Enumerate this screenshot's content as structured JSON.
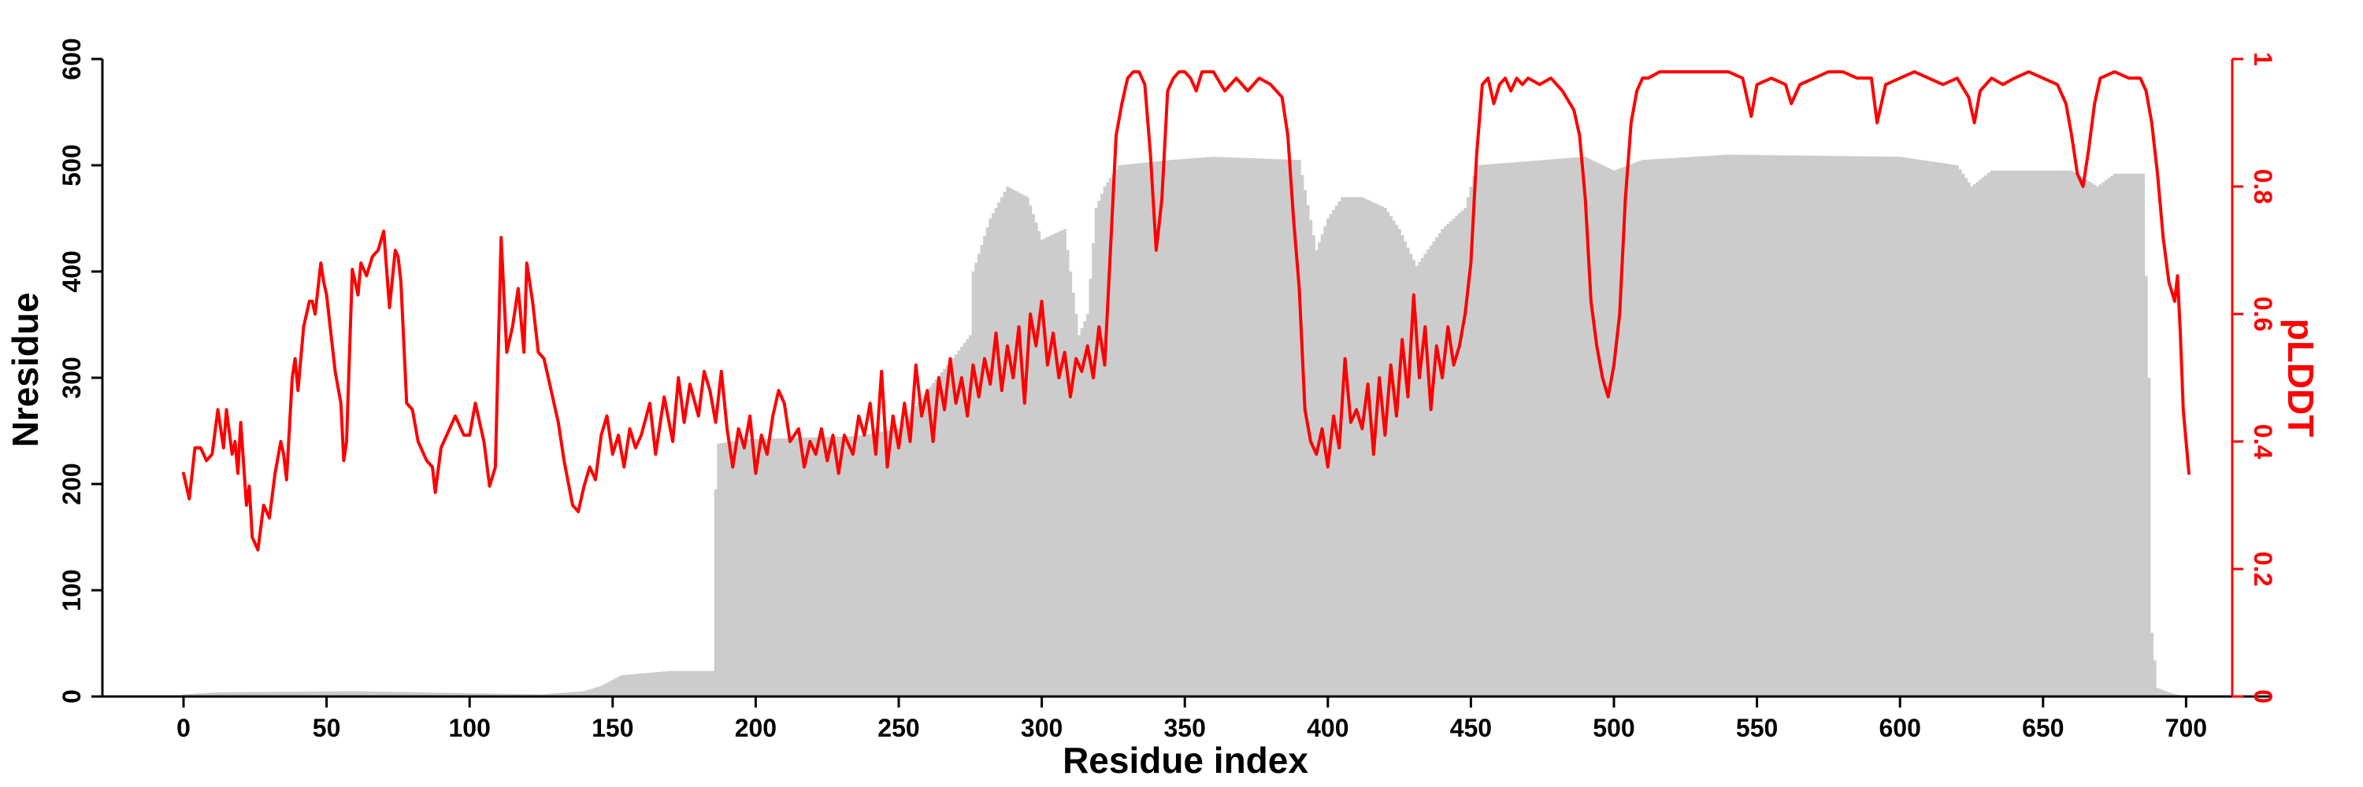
{
  "colors": {
    "bars": "#cccccc",
    "plddt": "#ff0000",
    "axis": "#000000"
  },
  "chart_data": {
    "type": "bar+line",
    "xlabel": "Residue index",
    "ylabel_left": "Nresidue",
    "ylabel_right": "pLDDT",
    "xlim": [
      -28,
      718
    ],
    "ylim_left": [
      0,
      600
    ],
    "ylim_right": [
      0,
      1
    ],
    "x_ticks": [
      0,
      50,
      100,
      150,
      200,
      250,
      300,
      350,
      400,
      450,
      500,
      550,
      600,
      650,
      700
    ],
    "y_left_ticks": [
      0,
      100,
      200,
      300,
      400,
      500,
      600
    ],
    "y_right_ticks": [
      0,
      0.2,
      0.4,
      0.6,
      0.8,
      1
    ],
    "grid": false,
    "legend": "none",
    "nresidue_profile": [
      [
        0,
        2
      ],
      [
        12,
        4
      ],
      [
        60,
        5
      ],
      [
        125,
        2
      ],
      [
        140,
        5
      ],
      [
        146,
        10
      ],
      [
        153,
        20
      ],
      [
        170,
        24
      ],
      [
        185,
        24
      ],
      [
        186,
        195
      ],
      [
        187,
        238
      ],
      [
        196,
        242
      ],
      [
        235,
        245
      ],
      [
        250,
        252
      ],
      [
        262,
        295
      ],
      [
        270,
        322
      ],
      [
        275,
        340
      ],
      [
        276,
        400
      ],
      [
        282,
        450
      ],
      [
        288,
        480
      ],
      [
        295,
        470
      ],
      [
        300,
        430
      ],
      [
        308,
        440
      ],
      [
        313,
        340
      ],
      [
        316,
        360
      ],
      [
        319,
        460
      ],
      [
        322,
        480
      ],
      [
        327,
        500
      ],
      [
        345,
        505
      ],
      [
        360,
        508
      ],
      [
        390,
        505
      ],
      [
        396,
        420
      ],
      [
        400,
        450
      ],
      [
        405,
        470
      ],
      [
        412,
        470
      ],
      [
        420,
        460
      ],
      [
        425,
        440
      ],
      [
        431,
        405
      ],
      [
        440,
        440
      ],
      [
        448,
        460
      ],
      [
        452,
        500
      ],
      [
        490,
        508
      ],
      [
        500,
        495
      ],
      [
        510,
        505
      ],
      [
        540,
        510
      ],
      [
        600,
        508
      ],
      [
        620,
        500
      ],
      [
        625,
        480
      ],
      [
        632,
        495
      ],
      [
        660,
        495
      ],
      [
        669,
        480
      ],
      [
        675,
        492
      ],
      [
        685,
        492
      ],
      [
        687,
        300
      ],
      [
        688,
        60
      ],
      [
        690,
        8
      ],
      [
        695,
        3
      ],
      [
        700,
        0
      ]
    ],
    "plddt": [
      [
        0,
        0.35
      ],
      [
        2,
        0.31
      ],
      [
        4,
        0.39
      ],
      [
        6,
        0.39
      ],
      [
        8,
        0.37
      ],
      [
        10,
        0.38
      ],
      [
        12,
        0.45
      ],
      [
        14,
        0.39
      ],
      [
        15,
        0.45
      ],
      [
        17,
        0.38
      ],
      [
        18,
        0.4
      ],
      [
        19,
        0.35
      ],
      [
        20,
        0.43
      ],
      [
        22,
        0.3
      ],
      [
        23,
        0.33
      ],
      [
        24,
        0.25
      ],
      [
        26,
        0.23
      ],
      [
        28,
        0.3
      ],
      [
        30,
        0.28
      ],
      [
        32,
        0.35
      ],
      [
        34,
        0.4
      ],
      [
        35,
        0.38
      ],
      [
        36,
        0.34
      ],
      [
        38,
        0.5
      ],
      [
        39,
        0.53
      ],
      [
        40,
        0.48
      ],
      [
        42,
        0.58
      ],
      [
        44,
        0.62
      ],
      [
        45,
        0.62
      ],
      [
        46,
        0.6
      ],
      [
        48,
        0.68
      ],
      [
        49,
        0.65
      ],
      [
        50,
        0.63
      ],
      [
        52,
        0.55
      ],
      [
        53,
        0.51
      ],
      [
        55,
        0.46
      ],
      [
        56,
        0.37
      ],
      [
        57,
        0.4
      ],
      [
        59,
        0.67
      ],
      [
        61,
        0.63
      ],
      [
        62,
        0.68
      ],
      [
        64,
        0.66
      ],
      [
        66,
        0.69
      ],
      [
        68,
        0.7
      ],
      [
        70,
        0.73
      ],
      [
        72,
        0.61
      ],
      [
        74,
        0.7
      ],
      [
        75,
        0.69
      ],
      [
        76,
        0.65
      ],
      [
        78,
        0.46
      ],
      [
        80,
        0.45
      ],
      [
        82,
        0.4
      ],
      [
        85,
        0.37
      ],
      [
        87,
        0.36
      ],
      [
        88,
        0.32
      ],
      [
        90,
        0.39
      ],
      [
        93,
        0.42
      ],
      [
        95,
        0.44
      ],
      [
        98,
        0.41
      ],
      [
        100,
        0.41
      ],
      [
        102,
        0.46
      ],
      [
        105,
        0.4
      ],
      [
        107,
        0.33
      ],
      [
        109,
        0.36
      ],
      [
        111,
        0.72
      ],
      [
        113,
        0.54
      ],
      [
        115,
        0.58
      ],
      [
        117,
        0.64
      ],
      [
        119,
        0.54
      ],
      [
        120,
        0.68
      ],
      [
        122,
        0.62
      ],
      [
        124,
        0.54
      ],
      [
        126,
        0.53
      ],
      [
        128,
        0.49
      ],
      [
        131,
        0.43
      ],
      [
        133,
        0.37
      ],
      [
        136,
        0.3
      ],
      [
        138,
        0.29
      ],
      [
        140,
        0.33
      ],
      [
        142,
        0.36
      ],
      [
        144,
        0.34
      ],
      [
        146,
        0.41
      ],
      [
        148,
        0.44
      ],
      [
        150,
        0.38
      ],
      [
        152,
        0.41
      ],
      [
        154,
        0.36
      ],
      [
        156,
        0.42
      ],
      [
        158,
        0.39
      ],
      [
        160,
        0.41
      ],
      [
        163,
        0.46
      ],
      [
        165,
        0.38
      ],
      [
        168,
        0.47
      ],
      [
        171,
        0.4
      ],
      [
        173,
        0.5
      ],
      [
        175,
        0.43
      ],
      [
        177,
        0.49
      ],
      [
        180,
        0.44
      ],
      [
        182,
        0.51
      ],
      [
        184,
        0.48
      ],
      [
        186,
        0.43
      ],
      [
        188,
        0.51
      ],
      [
        190,
        0.42
      ],
      [
        192,
        0.36
      ],
      [
        194,
        0.42
      ],
      [
        196,
        0.39
      ],
      [
        198,
        0.44
      ],
      [
        200,
        0.35
      ],
      [
        202,
        0.41
      ],
      [
        204,
        0.38
      ],
      [
        206,
        0.44
      ],
      [
        208,
        0.48
      ],
      [
        210,
        0.46
      ],
      [
        212,
        0.4
      ],
      [
        215,
        0.42
      ],
      [
        217,
        0.36
      ],
      [
        219,
        0.4
      ],
      [
        221,
        0.38
      ],
      [
        223,
        0.42
      ],
      [
        225,
        0.37
      ],
      [
        227,
        0.41
      ],
      [
        229,
        0.35
      ],
      [
        231,
        0.41
      ],
      [
        234,
        0.38
      ],
      [
        236,
        0.44
      ],
      [
        238,
        0.41
      ],
      [
        240,
        0.46
      ],
      [
        242,
        0.38
      ],
      [
        244,
        0.51
      ],
      [
        246,
        0.36
      ],
      [
        248,
        0.44
      ],
      [
        250,
        0.39
      ],
      [
        252,
        0.46
      ],
      [
        254,
        0.4
      ],
      [
        256,
        0.52
      ],
      [
        258,
        0.44
      ],
      [
        260,
        0.48
      ],
      [
        262,
        0.4
      ],
      [
        264,
        0.5
      ],
      [
        266,
        0.45
      ],
      [
        268,
        0.53
      ],
      [
        270,
        0.46
      ],
      [
        272,
        0.5
      ],
      [
        274,
        0.44
      ],
      [
        276,
        0.52
      ],
      [
        278,
        0.47
      ],
      [
        280,
        0.53
      ],
      [
        282,
        0.49
      ],
      [
        284,
        0.57
      ],
      [
        286,
        0.48
      ],
      [
        288,
        0.55
      ],
      [
        290,
        0.5
      ],
      [
        292,
        0.58
      ],
      [
        294,
        0.46
      ],
      [
        296,
        0.6
      ],
      [
        298,
        0.55
      ],
      [
        300,
        0.62
      ],
      [
        302,
        0.52
      ],
      [
        304,
        0.57
      ],
      [
        306,
        0.5
      ],
      [
        308,
        0.54
      ],
      [
        310,
        0.47
      ],
      [
        312,
        0.53
      ],
      [
        314,
        0.51
      ],
      [
        316,
        0.55
      ],
      [
        318,
        0.5
      ],
      [
        320,
        0.58
      ],
      [
        322,
        0.52
      ],
      [
        324,
        0.7
      ],
      [
        326,
        0.88
      ],
      [
        328,
        0.93
      ],
      [
        330,
        0.97
      ],
      [
        332,
        0.98
      ],
      [
        334,
        0.98
      ],
      [
        336,
        0.96
      ],
      [
        338,
        0.85
      ],
      [
        340,
        0.7
      ],
      [
        342,
        0.78
      ],
      [
        344,
        0.95
      ],
      [
        346,
        0.97
      ],
      [
        348,
        0.98
      ],
      [
        350,
        0.98
      ],
      [
        352,
        0.97
      ],
      [
        354,
        0.95
      ],
      [
        356,
        0.98
      ],
      [
        360,
        0.98
      ],
      [
        364,
        0.95
      ],
      [
        368,
        0.97
      ],
      [
        372,
        0.95
      ],
      [
        376,
        0.97
      ],
      [
        380,
        0.96
      ],
      [
        384,
        0.94
      ],
      [
        386,
        0.88
      ],
      [
        388,
        0.75
      ],
      [
        390,
        0.64
      ],
      [
        392,
        0.45
      ],
      [
        394,
        0.4
      ],
      [
        396,
        0.38
      ],
      [
        398,
        0.42
      ],
      [
        400,
        0.36
      ],
      [
        402,
        0.44
      ],
      [
        404,
        0.39
      ],
      [
        406,
        0.53
      ],
      [
        408,
        0.43
      ],
      [
        410,
        0.45
      ],
      [
        412,
        0.42
      ],
      [
        414,
        0.49
      ],
      [
        416,
        0.38
      ],
      [
        418,
        0.5
      ],
      [
        420,
        0.41
      ],
      [
        422,
        0.52
      ],
      [
        424,
        0.44
      ],
      [
        426,
        0.56
      ],
      [
        428,
        0.47
      ],
      [
        430,
        0.63
      ],
      [
        432,
        0.5
      ],
      [
        434,
        0.58
      ],
      [
        436,
        0.45
      ],
      [
        438,
        0.55
      ],
      [
        440,
        0.5
      ],
      [
        442,
        0.58
      ],
      [
        444,
        0.52
      ],
      [
        446,
        0.55
      ],
      [
        448,
        0.6
      ],
      [
        450,
        0.68
      ],
      [
        452,
        0.85
      ],
      [
        454,
        0.96
      ],
      [
        456,
        0.97
      ],
      [
        458,
        0.93
      ],
      [
        460,
        0.96
      ],
      [
        462,
        0.97
      ],
      [
        464,
        0.95
      ],
      [
        466,
        0.97
      ],
      [
        468,
        0.96
      ],
      [
        470,
        0.97
      ],
      [
        474,
        0.96
      ],
      [
        478,
        0.97
      ],
      [
        482,
        0.95
      ],
      [
        486,
        0.92
      ],
      [
        488,
        0.88
      ],
      [
        490,
        0.78
      ],
      [
        492,
        0.62
      ],
      [
        494,
        0.55
      ],
      [
        496,
        0.5
      ],
      [
        498,
        0.47
      ],
      [
        500,
        0.52
      ],
      [
        502,
        0.6
      ],
      [
        504,
        0.78
      ],
      [
        506,
        0.9
      ],
      [
        508,
        0.95
      ],
      [
        510,
        0.97
      ],
      [
        512,
        0.97
      ],
      [
        516,
        0.98
      ],
      [
        520,
        0.98
      ],
      [
        530,
        0.98
      ],
      [
        540,
        0.98
      ],
      [
        545,
        0.97
      ],
      [
        548,
        0.91
      ],
      [
        550,
        0.96
      ],
      [
        555,
        0.97
      ],
      [
        560,
        0.96
      ],
      [
        562,
        0.93
      ],
      [
        565,
        0.96
      ],
      [
        570,
        0.97
      ],
      [
        575,
        0.98
      ],
      [
        580,
        0.98
      ],
      [
        585,
        0.97
      ],
      [
        590,
        0.97
      ],
      [
        592,
        0.9
      ],
      [
        595,
        0.96
      ],
      [
        600,
        0.97
      ],
      [
        605,
        0.98
      ],
      [
        610,
        0.97
      ],
      [
        615,
        0.96
      ],
      [
        620,
        0.97
      ],
      [
        624,
        0.94
      ],
      [
        626,
        0.9
      ],
      [
        628,
        0.95
      ],
      [
        632,
        0.97
      ],
      [
        636,
        0.96
      ],
      [
        640,
        0.97
      ],
      [
        645,
        0.98
      ],
      [
        650,
        0.97
      ],
      [
        655,
        0.96
      ],
      [
        658,
        0.93
      ],
      [
        660,
        0.88
      ],
      [
        662,
        0.82
      ],
      [
        664,
        0.8
      ],
      [
        666,
        0.86
      ],
      [
        668,
        0.93
      ],
      [
        670,
        0.97
      ],
      [
        675,
        0.98
      ],
      [
        680,
        0.97
      ],
      [
        684,
        0.97
      ],
      [
        686,
        0.95
      ],
      [
        688,
        0.9
      ],
      [
        690,
        0.82
      ],
      [
        692,
        0.72
      ],
      [
        694,
        0.65
      ],
      [
        696,
        0.62
      ],
      [
        697,
        0.66
      ],
      [
        698,
        0.57
      ],
      [
        699,
        0.45
      ],
      [
        700,
        0.4
      ],
      [
        701,
        0.35
      ]
    ]
  }
}
